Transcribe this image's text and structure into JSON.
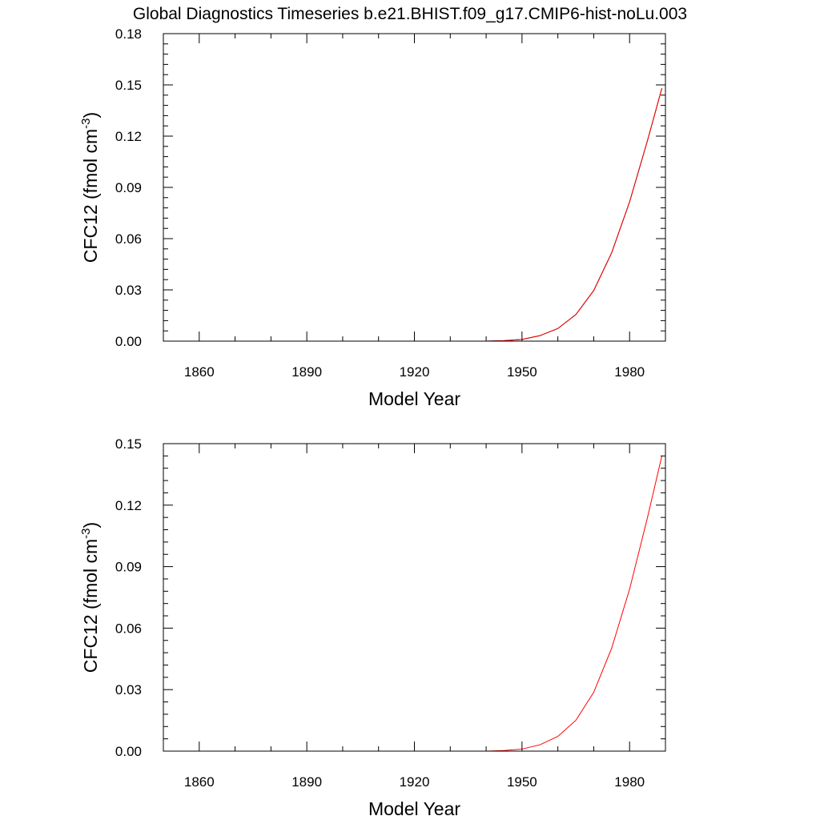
{
  "page_title": "Global Diagnostics Timeseries b.e21.BHIST.f09_g17.CMIP6-hist-noLu.003",
  "chart_data": [
    {
      "type": "line",
      "xlabel": "Model Year",
      "ylabel_main": "CFC12 (fmol cm",
      "ylabel_sup": "-3",
      "ylabel_close": ")",
      "xlim": [
        1850,
        1990
      ],
      "ylim": [
        0,
        0.18
      ],
      "x_ticks": [
        1860,
        1890,
        1920,
        1950,
        1980
      ],
      "y_ticks": [
        "0.00",
        "0.03",
        "0.06",
        "0.09",
        "0.12",
        "0.15",
        "0.18"
      ],
      "grid": false,
      "series": [
        {
          "color": "#000000",
          "x": [
            1850,
            1940,
            1945,
            1950,
            1955,
            1960,
            1965,
            1970,
            1975,
            1980,
            1985,
            1989
          ],
          "y": [
            0,
            0,
            0.0003,
            0.001,
            0.0032,
            0.0074,
            0.0155,
            0.0296,
            0.0517,
            0.0815,
            0.1175,
            0.148
          ]
        },
        {
          "color": "#ff0000",
          "x": [
            1850,
            1940,
            1945,
            1950,
            1955,
            1960,
            1965,
            1970,
            1975,
            1980,
            1985,
            1989
          ],
          "y": [
            0,
            0,
            0.0003,
            0.001,
            0.0032,
            0.0074,
            0.0155,
            0.0296,
            0.0517,
            0.0815,
            0.1175,
            0.148
          ]
        }
      ]
    },
    {
      "type": "line",
      "xlabel": "Model Year",
      "ylabel_main": "CFC12 (fmol cm",
      "ylabel_sup": "-3",
      "ylabel_close": ")",
      "xlim": [
        1850,
        1990
      ],
      "ylim": [
        0,
        0.15
      ],
      "x_ticks": [
        1860,
        1890,
        1920,
        1950,
        1980
      ],
      "y_ticks": [
        "0.00",
        "0.03",
        "0.06",
        "0.09",
        "0.12",
        "0.15"
      ],
      "grid": false,
      "series": [
        {
          "color": "#ff0000",
          "x": [
            1850,
            1940,
            1945,
            1950,
            1955,
            1960,
            1965,
            1970,
            1975,
            1980,
            1985,
            1989
          ],
          "y": [
            0,
            0,
            0.0003,
            0.001,
            0.0031,
            0.0072,
            0.015,
            0.0287,
            0.0502,
            0.079,
            0.114,
            0.144
          ]
        }
      ]
    }
  ]
}
